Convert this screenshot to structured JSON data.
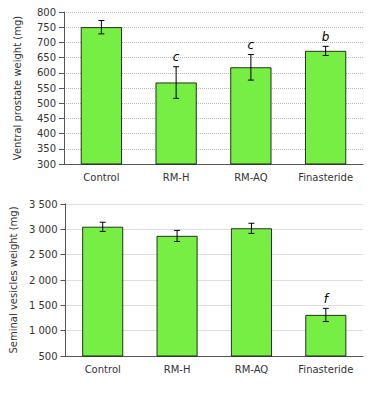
{
  "chart_data": [
    {
      "type": "bar",
      "categories": [
        "Control",
        "RM-H",
        "RM-AQ",
        "Finasteride"
      ],
      "values": [
        750,
        568,
        618,
        672
      ],
      "errors": [
        22,
        52,
        42,
        15
      ],
      "annotations": [
        {
          "category": "RM-H",
          "text": "c"
        },
        {
          "category": "RM-AQ",
          "text": "c"
        },
        {
          "category": "Finasteride",
          "text": "b"
        }
      ],
      "ylabel": "Ventral prostate weight (mg)",
      "ylim": [
        300,
        800
      ],
      "yticks": [
        300,
        350,
        400,
        450,
        500,
        550,
        600,
        650,
        700,
        750,
        800
      ],
      "color": "#77ee44",
      "grid": true
    },
    {
      "type": "bar",
      "categories": [
        "Control",
        "RM-H",
        "RM-AQ",
        "Finasteride"
      ],
      "values": [
        3050,
        2870,
        3020,
        1310
      ],
      "errors": [
        90,
        110,
        100,
        130
      ],
      "annotations": [
        {
          "category": "Finasteride",
          "text": "f"
        }
      ],
      "ylabel": "Seminal vesicles weight (mg)",
      "ylim": [
        500,
        3500
      ],
      "yticks": [
        500,
        {
          "value": 1000,
          "label": "1 000"
        },
        {
          "value": 1500,
          "label": "1 500"
        },
        {
          "value": 2000,
          "label": "2 000"
        },
        {
          "value": 2500,
          "label": "2 500"
        },
        {
          "value": 3000,
          "label": "3 000"
        },
        {
          "value": 3500,
          "label": "3 500"
        }
      ],
      "color": "#77ee44",
      "grid": true
    }
  ]
}
